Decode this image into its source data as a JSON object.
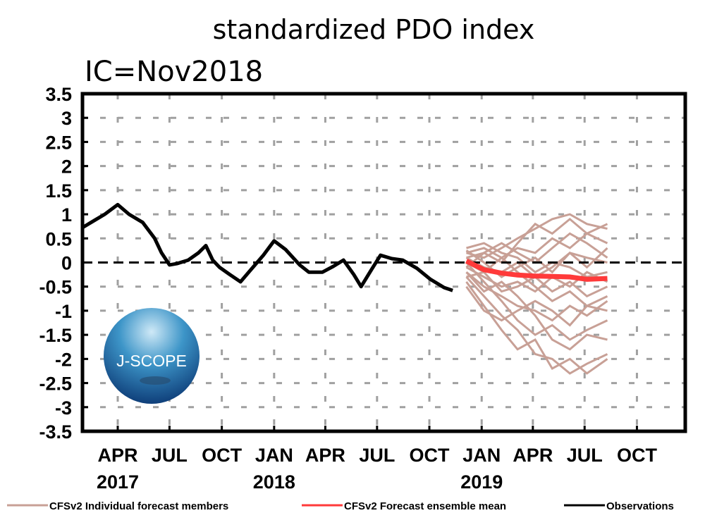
{
  "chart_data": {
    "type": "line",
    "title": "standardized PDO index",
    "subtitle": "IC=Nov2018",
    "xlabel": "",
    "ylabel": "",
    "xlim": [
      "2017-01-29",
      "2019-12-25"
    ],
    "ylim": [
      -3.5,
      3.5
    ],
    "yticks": [
      3.5,
      3,
      2.5,
      2,
      1.5,
      1,
      0.5,
      0,
      -0.5,
      -1,
      -1.5,
      -2,
      -2.5,
      -3,
      -3.5
    ],
    "ytick_labels": [
      "3.5",
      "3",
      "2.5",
      "2",
      "1.5",
      "1",
      "0.5",
      "0",
      "-0.5",
      "-1",
      "-1.5",
      "-2",
      "-2.5",
      "-3",
      "-3.5"
    ],
    "xticks": [
      {
        "date": "2017-04-01",
        "label": "APR",
        "year": "2017"
      },
      {
        "date": "2017-07-01",
        "label": "JUL",
        "year": ""
      },
      {
        "date": "2017-10-01",
        "label": "OCT",
        "year": ""
      },
      {
        "date": "2018-01-01",
        "label": "JAN",
        "year": "2018"
      },
      {
        "date": "2018-04-01",
        "label": "APR",
        "year": ""
      },
      {
        "date": "2018-07-01",
        "label": "JUL",
        "year": ""
      },
      {
        "date": "2018-10-01",
        "label": "OCT",
        "year": ""
      },
      {
        "date": "2019-01-01",
        "label": "JAN",
        "year": "2019"
      },
      {
        "date": "2019-04-01",
        "label": "APR",
        "year": ""
      },
      {
        "date": "2019-07-01",
        "label": "JUL",
        "year": ""
      },
      {
        "date": "2019-10-01",
        "label": "OCT",
        "year": ""
      }
    ],
    "grid": true,
    "zero_line": "dashed black",
    "legend_placement": "bottom",
    "colors": {
      "members": "#c8a096",
      "mean": "#ff3a3a",
      "observations": "#000000",
      "grid": "#a0a0a0"
    },
    "series": [
      {
        "name": "Observations",
        "x": [
          "2017-01-30",
          "2017-02-20",
          "2017-03-09",
          "2017-04-01",
          "2017-04-21",
          "2017-05-15",
          "2017-06-05",
          "2017-06-17",
          "2017-07-01",
          "2017-07-15",
          "2017-08-03",
          "2017-08-21",
          "2017-09-03",
          "2017-09-15",
          "2017-09-27",
          "2017-10-15",
          "2017-11-03",
          "2017-11-21",
          "2017-12-13",
          "2018-01-01",
          "2018-01-21",
          "2018-02-15",
          "2018-03-03",
          "2018-03-27",
          "2018-04-15",
          "2018-05-03",
          "2018-05-21",
          "2018-06-03",
          "2018-06-21",
          "2018-07-07",
          "2018-07-27",
          "2018-08-15",
          "2018-09-09",
          "2018-10-03",
          "2018-10-27",
          "2018-11-11"
        ],
        "values": [
          0.73,
          0.88,
          1.0,
          1.2,
          1.0,
          0.83,
          0.5,
          0.2,
          -0.05,
          -0.02,
          0.05,
          0.2,
          0.35,
          0.05,
          -0.1,
          -0.25,
          -0.4,
          -0.15,
          0.15,
          0.45,
          0.27,
          -0.05,
          -0.2,
          -0.2,
          -0.08,
          0.05,
          -0.25,
          -0.5,
          -0.15,
          0.15,
          0.08,
          0.05,
          -0.12,
          -0.35,
          -0.52,
          -0.58
        ]
      },
      {
        "name": "CFSv2 Forecast ensemble mean",
        "x": [
          "2018-12-05",
          "2019-01-05",
          "2019-02-05",
          "2019-03-05",
          "2019-04-05",
          "2019-05-05",
          "2019-06-05",
          "2019-07-05",
          "2019-08-10"
        ],
        "values": [
          0.03,
          -0.15,
          -0.22,
          -0.26,
          -0.28,
          -0.29,
          -0.3,
          -0.35,
          -0.33
        ]
      }
    ],
    "members": {
      "name": "CFSv2 Individual forecast members",
      "x": [
        "2018-12-05",
        "2019-01-05",
        "2019-02-05",
        "2019-03-05",
        "2019-04-05",
        "2019-05-05",
        "2019-06-05",
        "2019-07-05",
        "2019-08-10"
      ],
      "values": [
        [
          0.2,
          0.1,
          0.3,
          0.5,
          0.7,
          0.9,
          1.0,
          0.8,
          0.7
        ],
        [
          0.1,
          0.2,
          0.0,
          0.4,
          0.8,
          0.6,
          0.9,
          0.6,
          0.8
        ],
        [
          0.0,
          -0.2,
          0.1,
          0.3,
          0.2,
          0.5,
          0.3,
          0.6,
          0.4
        ],
        [
          0.25,
          0.0,
          -0.3,
          -0.1,
          0.1,
          -0.2,
          0.2,
          0.1,
          0.0
        ],
        [
          -0.1,
          -0.3,
          -0.5,
          -0.4,
          -0.6,
          -0.3,
          -0.5,
          -0.2,
          -0.4
        ],
        [
          -0.2,
          -0.5,
          -0.7,
          -0.9,
          -1.0,
          -1.2,
          -0.9,
          -1.1,
          -0.8
        ],
        [
          0.0,
          -0.4,
          -0.8,
          -1.2,
          -1.5,
          -1.3,
          -1.6,
          -1.4,
          -1.2
        ],
        [
          -0.3,
          -0.7,
          -1.1,
          -1.4,
          -1.9,
          -2.0,
          -2.3,
          -2.1,
          -1.9
        ],
        [
          -0.4,
          -0.9,
          -1.4,
          -1.8,
          -1.6,
          -2.2,
          -2.0,
          -2.3,
          -2.0
        ],
        [
          0.1,
          -0.1,
          -0.2,
          0.0,
          -0.3,
          -0.6,
          -0.4,
          -0.7,
          -0.5
        ],
        [
          -0.1,
          0.2,
          0.4,
          0.2,
          0.0,
          0.3,
          0.6,
          0.4,
          0.1
        ],
        [
          -0.5,
          -1.0,
          -1.2,
          -1.0,
          -0.8,
          -1.0,
          -1.3,
          -0.9,
          -1.0
        ],
        [
          0.3,
          0.4,
          0.2,
          0.1,
          -0.2,
          0.0,
          -0.1,
          -0.3,
          -0.2
        ],
        [
          -0.2,
          -0.6,
          -0.4,
          -0.7,
          -1.1,
          -1.6,
          -1.8,
          -1.5,
          -1.6
        ],
        [
          0.2,
          0.3,
          0.1,
          -0.2,
          -0.5,
          -0.8,
          -0.6,
          -0.9,
          -0.7
        ],
        [
          -0.3,
          -0.2,
          -0.6,
          -0.5,
          -0.3,
          -0.1,
          0.2,
          -0.1,
          0.3
        ]
      ]
    },
    "legend": [
      {
        "label": "CFSv2 Individual forecast members",
        "color": "#c8a096"
      },
      {
        "label": "CFSv2 Forecast ensemble mean",
        "color": "#ff3a3a"
      },
      {
        "label": "Observations",
        "color": "#000000"
      }
    ]
  },
  "logo": {
    "text": "J-SCOPE"
  }
}
